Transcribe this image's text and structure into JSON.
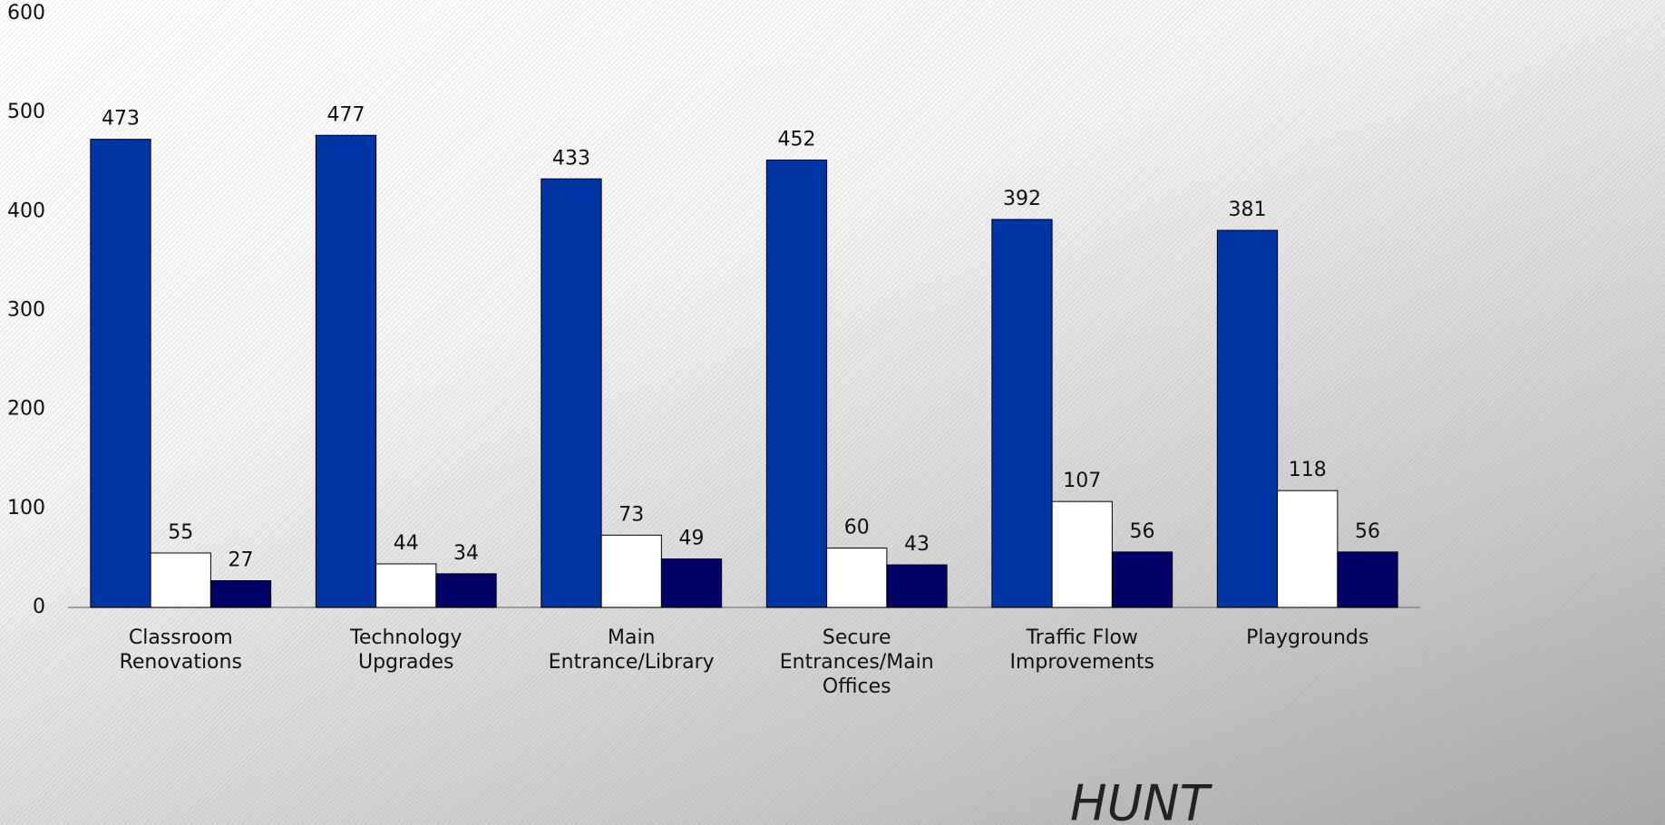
{
  "chart_data": {
    "type": "bar",
    "categories": [
      "Classroom\nRenovations",
      "Technology\nUpgrades",
      "Main\nEntrance/Library",
      "Secure\nEntrances/Main\nOffices",
      "Traffic Flow\nImprovements",
      "Playgrounds"
    ],
    "series": [
      {
        "color": "#0035a5",
        "values": [
          473,
          477,
          433,
          452,
          392,
          381
        ]
      },
      {
        "color": "#ffffff",
        "values": [
          55,
          44,
          73,
          60,
          107,
          118
        ]
      },
      {
        "color": "#000066",
        "values": [
          27,
          34,
          49,
          43,
          56,
          56
        ]
      }
    ],
    "ylim": [
      0,
      600
    ],
    "yticks": [
      0,
      100,
      200,
      300,
      400,
      500,
      600
    ],
    "annotation": "HUNT"
  }
}
